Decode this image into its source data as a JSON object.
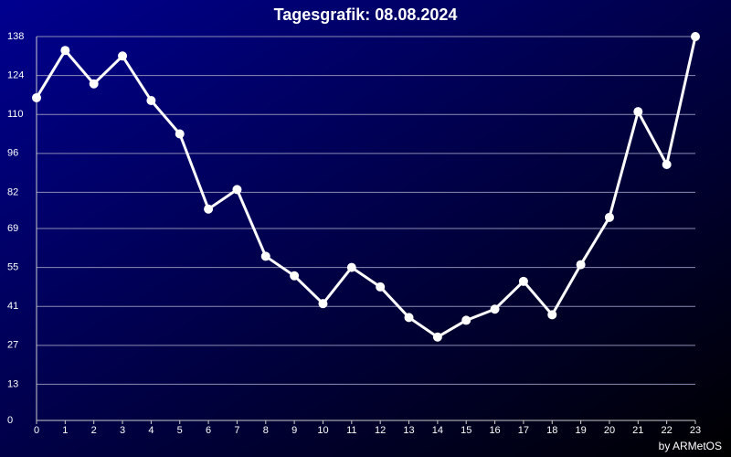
{
  "chart_data": {
    "type": "line",
    "title": "Tagesgrafik: 08.08.2024",
    "credit": "by ARMetOS",
    "x": [
      0,
      1,
      2,
      3,
      4,
      5,
      6,
      7,
      8,
      9,
      10,
      11,
      12,
      13,
      14,
      15,
      16,
      17,
      18,
      19,
      20,
      21,
      22,
      23
    ],
    "series": [
      {
        "color": "#ffffff",
        "values": [
          116,
          133,
          121,
          131,
          115,
          103,
          76,
          83,
          59,
          52,
          42,
          55,
          48,
          37,
          30,
          36,
          40,
          50,
          38,
          56,
          73,
          111,
          92,
          138
        ]
      }
    ],
    "xlim": [
      0,
      23
    ],
    "xticks": [
      0,
      1,
      2,
      3,
      4,
      5,
      6,
      7,
      8,
      9,
      10,
      11,
      12,
      13,
      14,
      15,
      16,
      17,
      18,
      19,
      20,
      21,
      22,
      23
    ],
    "ylim": [
      0,
      138
    ],
    "yticks": [
      0,
      13,
      27,
      41,
      55,
      69,
      82,
      96,
      110,
      124,
      138
    ],
    "grid": true
  }
}
